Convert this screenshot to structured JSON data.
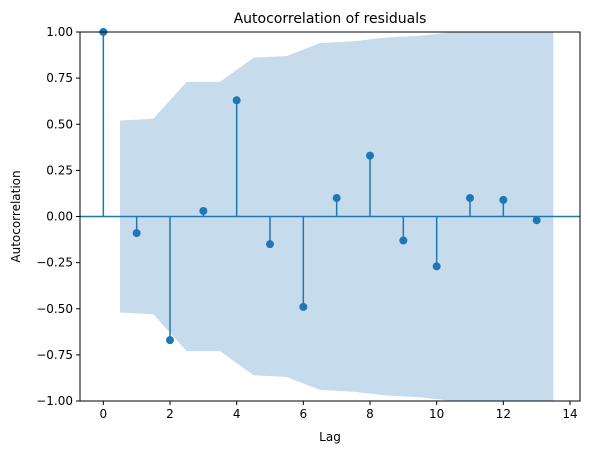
{
  "chart_data": {
    "type": "stem",
    "title": "Autocorrelation of residuals",
    "xlabel": "Lag",
    "ylabel": "Autocorrelation",
    "xlim": [
      -0.7,
      14.3
    ],
    "ylim": [
      -1.0,
      1.0
    ],
    "xticks": [
      0,
      2,
      4,
      6,
      8,
      10,
      12,
      14
    ],
    "yticks": [
      -1.0,
      -0.75,
      -0.5,
      -0.25,
      0.0,
      0.25,
      0.5,
      0.75,
      1.0
    ],
    "ytick_labels": [
      "−1.00",
      "−0.75",
      "−0.50",
      "−0.25",
      "0.00",
      "0.25",
      "0.50",
      "0.75",
      "1.00"
    ],
    "xtick_labels": [
      "0",
      "2",
      "4",
      "6",
      "8",
      "10",
      "12",
      "14"
    ],
    "series": [
      {
        "lags": [
          0,
          1,
          2,
          3,
          4,
          5,
          6,
          7,
          8,
          9,
          10,
          11,
          12,
          13
        ],
        "values": [
          1.0,
          -0.09,
          -0.67,
          0.03,
          0.63,
          -0.15,
          -0.49,
          0.1,
          0.33,
          -0.13,
          -0.27,
          0.1,
          0.09,
          -0.02
        ]
      }
    ],
    "confidence_band": {
      "lags": [
        0.5,
        1.5,
        1.5,
        2.5,
        2.5,
        3.5,
        3.5,
        4.5,
        4.5,
        5.5,
        5.5,
        6.5,
        6.5,
        7.5,
        7.5,
        8.5,
        8.5,
        9.5,
        9.5,
        10.5,
        10.5,
        11.5,
        11.5,
        12.5,
        12.5,
        13.5
      ],
      "upper": [
        0.52,
        0.53,
        0.53,
        0.73,
        0.73,
        0.73,
        0.73,
        0.86,
        0.86,
        0.87,
        0.87,
        0.94,
        0.94,
        0.95,
        0.95,
        0.97,
        0.97,
        0.98,
        0.98,
        1.0,
        1.0,
        1.0,
        1.0,
        1.0,
        1.0,
        1.0
      ],
      "lower": [
        -0.52,
        -0.53,
        -0.53,
        -0.73,
        -0.73,
        -0.73,
        -0.73,
        -0.86,
        -0.86,
        -0.87,
        -0.87,
        -0.94,
        -0.94,
        -0.95,
        -0.95,
        -0.97,
        -0.97,
        -0.98,
        -0.98,
        -1.0,
        -1.0,
        -1.0,
        -1.0,
        -1.0,
        -1.0,
        -1.0
      ]
    },
    "colors": {
      "stem": "#1f77b4",
      "band": "#c6dbec",
      "zero_line": "#1f77b4"
    },
    "grid": false,
    "legend": "none"
  }
}
